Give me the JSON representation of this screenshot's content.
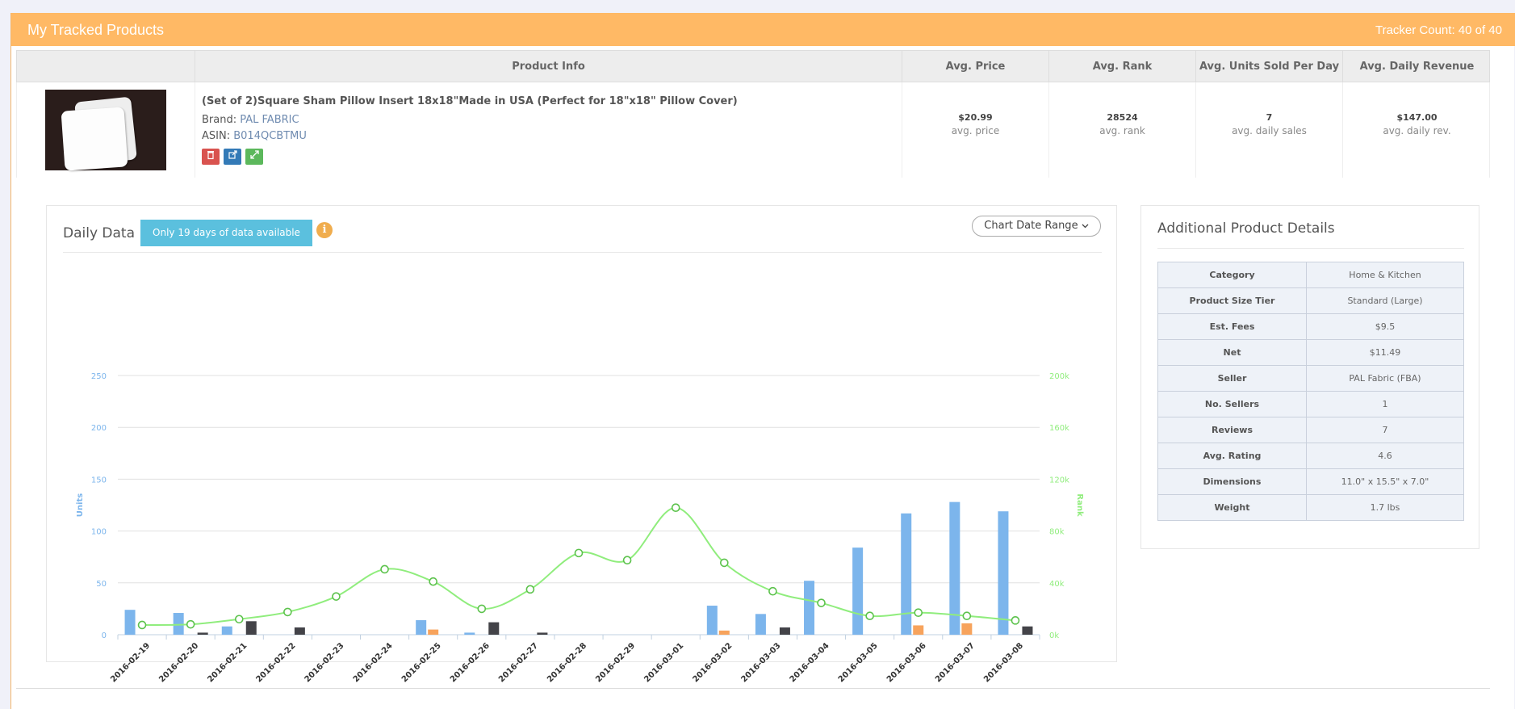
{
  "panel": {
    "title": "My Tracked Products",
    "tracker_count": "Tracker Count: 40 of 40"
  },
  "table": {
    "headers": [
      "",
      "Product Info",
      "Avg. Price",
      "Avg. Rank",
      "Avg. Units Sold Per Day",
      "Avg. Daily Revenue"
    ],
    "product": {
      "title": "(Set of 2)Square Sham Pillow Insert 18x18\"Made in USA (Perfect for 18\"x18\" Pillow Cover)",
      "brand_label": "Brand:",
      "brand": "PAL FABRIC",
      "asin_label": "ASIN:",
      "asin": "B014QCBTMU",
      "actions": {
        "delete_icon": "trash-icon",
        "open_icon": "external-link-icon",
        "expand_icon": "expand-icon"
      },
      "avg_price": "$20.99",
      "avg_price_label": "avg. price",
      "avg_rank": "28524",
      "avg_rank_label": "avg. rank",
      "avg_units": "7",
      "avg_units_label": "avg. daily sales",
      "avg_revenue": "$147.00",
      "avg_revenue_label": "avg. daily rev."
    }
  },
  "daily": {
    "title": "Daily Data",
    "notice": "Only 19 days of data available",
    "info_icon": "info-icon",
    "range_button": "Chart Date Range"
  },
  "details": {
    "title": "Additional Product Details",
    "rows": [
      {
        "k": "Category",
        "v": "Home & Kitchen"
      },
      {
        "k": "Product Size Tier",
        "v": "Standard (Large)"
      },
      {
        "k": "Est. Fees",
        "v": "$9.5"
      },
      {
        "k": "Net",
        "v": "$11.49"
      },
      {
        "k": "Seller",
        "v": "PAL Fabric (FBA)"
      },
      {
        "k": "No. Sellers",
        "v": "1"
      },
      {
        "k": "Reviews",
        "v": "7"
      },
      {
        "k": "Avg. Rating",
        "v": "4.6"
      },
      {
        "k": "Dimensions",
        "v": "11.0\" x 15.5\" x 7.0\""
      },
      {
        "k": "Weight",
        "v": "1.7 lbs"
      }
    ]
  },
  "chart_data": {
    "type": "bar",
    "categories": [
      "2016-02-19",
      "2016-02-20",
      "2016-02-21",
      "2016-02-22",
      "2016-02-23",
      "2016-02-24",
      "2016-02-25",
      "2016-02-26",
      "2016-02-27",
      "2016-02-28",
      "2016-02-29",
      "2016-03-01",
      "2016-03-02",
      "2016-03-03",
      "2016-03-04",
      "2016-03-05",
      "2016-03-06",
      "2016-03-07",
      "2016-03-08"
    ],
    "ylabel": "Units",
    "y2label": "Rank",
    "ylim": [
      0,
      250
    ],
    "yticks": [
      "0",
      "50",
      "100",
      "150",
      "200",
      "250"
    ],
    "y2lim": [
      0,
      200000
    ],
    "y2ticks": [
      "0k",
      "40k",
      "80k",
      "120k",
      "160k",
      "200k"
    ],
    "colors": {
      "blue": "#7cb5ec",
      "orange": "#f7a35c",
      "dark": "#434348",
      "rank": "#90ed7d"
    },
    "series": [
      {
        "type": "bar",
        "color": "blue",
        "values": [
          24,
          21,
          8,
          0,
          0,
          0,
          14,
          2,
          0,
          0,
          0,
          0,
          28,
          20,
          52,
          84,
          117,
          128,
          119
        ]
      },
      {
        "type": "bar",
        "color": "orange",
        "values": [
          0,
          0,
          0,
          0,
          0,
          0,
          5,
          0,
          0,
          0,
          0,
          0,
          4,
          0,
          0,
          0,
          9,
          11,
          0
        ]
      },
      {
        "type": "bar",
        "color": "dark",
        "values": [
          0,
          2,
          13,
          7,
          0,
          0,
          0,
          12,
          2,
          0,
          0,
          0,
          0,
          7,
          0,
          0,
          0,
          0,
          8
        ]
      },
      {
        "type": "line",
        "color": "rank",
        "values": [
          7500,
          8000,
          12000,
          17500,
          29500,
          50500,
          41000,
          20000,
          35000,
          63000,
          57500,
          98000,
          55500,
          33500,
          24500,
          14500,
          17000,
          14500,
          11000
        ]
      }
    ]
  }
}
